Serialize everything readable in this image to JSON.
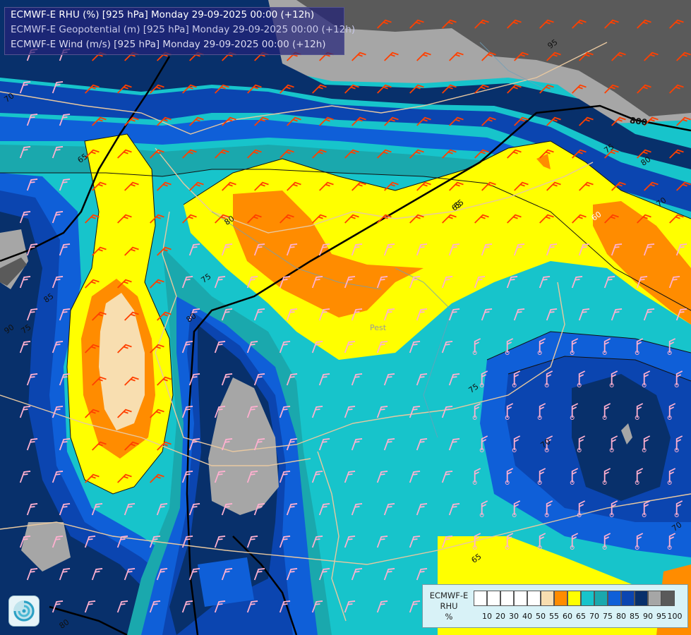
{
  "title": {
    "line1": "ECMWF-E RHU (%) [925 hPa] Monday 29-09-2025 00:00 (+12h)",
    "line2": "ECMWF-E Geopotential (m) [925 hPa] Monday 29-09-2025 00:00 (+12h)",
    "line3": "ECMWF-E Wind (m/s) [925 hPa] Monday 29-09-2025 00:00 (+12h)"
  },
  "legend": {
    "name_line1": "ECMWF-E",
    "name_line2": "RHU",
    "unit": "%",
    "ticks": [
      "10",
      "20",
      "30",
      "40",
      "50",
      "55",
      "60",
      "65",
      "70",
      "75",
      "80",
      "85",
      "90",
      "95",
      "100"
    ],
    "colors": [
      "#ffffff",
      "#ffffff",
      "#ffffff",
      "#ffffff",
      "#ffffff",
      "#f8deb0",
      "#ff8c00",
      "#ffff00",
      "#17c4cb",
      "#1aa8ad",
      "#0f5fd8",
      "#0b45b0",
      "#08306b",
      "#a6a6a6",
      "#5a5a5a"
    ]
  },
  "contour_labels": [
    {
      "text": "70",
      "color": "black"
    },
    {
      "text": "65",
      "color": "black"
    },
    {
      "text": "85",
      "color": "black"
    },
    {
      "text": "90",
      "color": "black"
    },
    {
      "text": "80",
      "color": "black"
    },
    {
      "text": "75",
      "color": "black"
    },
    {
      "text": "65",
      "color": "black"
    },
    {
      "text": "80",
      "color": "black"
    },
    {
      "text": "70",
      "color": "black"
    },
    {
      "text": "75",
      "color": "black"
    },
    {
      "text": "65",
      "color": "black"
    },
    {
      "text": "60",
      "color": "white"
    },
    {
      "text": "75",
      "color": "black"
    },
    {
      "text": "80",
      "color": "black"
    },
    {
      "text": "70",
      "color": "black"
    },
    {
      "text": "70",
      "color": "black"
    },
    {
      "text": "75",
      "color": "black"
    },
    {
      "text": "65",
      "color": "black"
    },
    {
      "text": "80",
      "color": "black"
    },
    {
      "text": "95",
      "color": "black"
    },
    {
      "text": "800",
      "color": "black"
    }
  ],
  "cities": [
    "Pest"
  ],
  "colors": {
    "title_bg": "#232378",
    "geopotential_line": "#000000",
    "borders": "#e8c8a0",
    "wind_barb_orange": "#ff4000",
    "wind_barb_pink": "#ffb0d0"
  }
}
